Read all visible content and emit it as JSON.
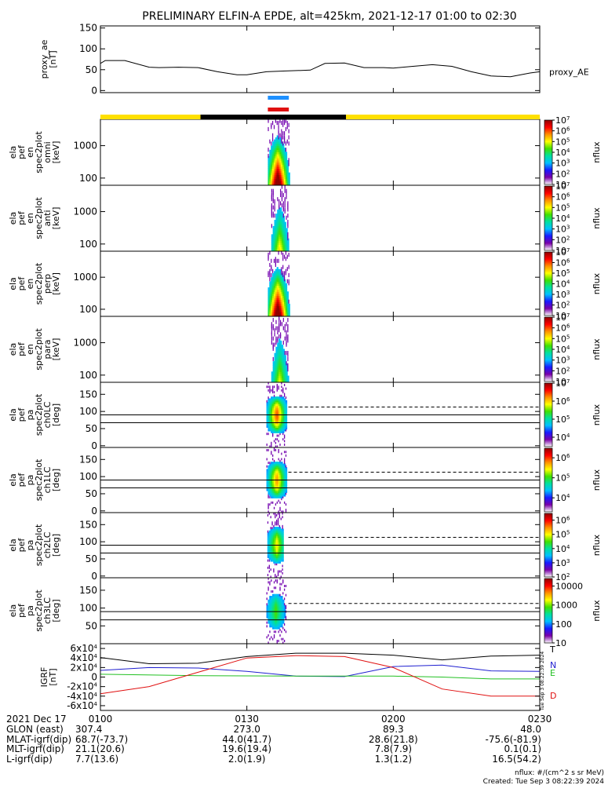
{
  "title": "PRELIMINARY ELFIN-A EPDE, alt=425km, 2021-12-17 01:00 to 02:30",
  "colors": {
    "ae_line": "#000000",
    "bar_blue": "#1e90ff",
    "bar_red": "#e01010",
    "bar_yellow": "#ffe000",
    "bar_black": "#000000",
    "igrf_T": "#000000",
    "igrf_N": "#1f1fd0",
    "igrf_E": "#22c022",
    "igrf_D": "#e01010"
  },
  "colorbar_gradient": [
    "#ffffff",
    "#7a00a8",
    "#1a1aff",
    "#00c0ff",
    "#00e0a0",
    "#40e000",
    "#ffff00",
    "#ff9000",
    "#ff0000",
    "#900000"
  ],
  "time_axis": {
    "range_min": [
      0,
      90
    ],
    "ticks": [
      {
        "t": 0,
        "label": "0100"
      },
      {
        "t": 30,
        "label": "0130"
      },
      {
        "t": 60,
        "label": "0200"
      },
      {
        "t": 90,
        "label": "0230"
      }
    ],
    "date_label": "2021 Dec 17"
  },
  "ephemeris": [
    {
      "label": "GLON (east)",
      "values": [
        "307.4",
        "273.0",
        "89.3",
        "48.0"
      ]
    },
    {
      "label": "MLAT-igrf(dip)",
      "values": [
        "68.7(-73.7)",
        "44.0(41.7)",
        "28.6(21.8)",
        "-75.6(-81.9)"
      ]
    },
    {
      "label": "MLT-igrf(dip)",
      "values": [
        "21.1(20.6)",
        "19.6(19.4)",
        "7.8(7.9)",
        "0.1(0.1)"
      ]
    },
    {
      "label": "L-igrf(dip)",
      "values": [
        "7.7(13.6)",
        "2.0(1.9)",
        "1.3(1.2)",
        "16.5(54.2)"
      ]
    }
  ],
  "footer": {
    "units": "nflux: #/(cm^2 s sr MeV)",
    "created": "Created: Tue Sep  3 08:22:39 2024",
    "side_stamp": "Tue Sep  3 08:22:39 2024"
  },
  "chart_data": [
    {
      "type": "line",
      "panel": "proxy_ae",
      "ylabel_lines": [
        "proxy_ae",
        "[nT]"
      ],
      "ylim": [
        -5,
        155
      ],
      "yticks": [
        0,
        50,
        100,
        150
      ],
      "series": [
        {
          "name": "proxy_AE",
          "x": [
            0,
            1,
            5,
            10,
            12,
            16,
            20,
            24,
            28,
            30,
            34,
            38,
            43,
            46,
            50,
            54,
            58,
            60,
            64,
            68,
            72,
            76,
            80,
            84,
            88,
            90
          ],
          "values": [
            65,
            72,
            72,
            56,
            55,
            56,
            55,
            45,
            38,
            38,
            45,
            47,
            49,
            65,
            66,
            55,
            55,
            54,
            58,
            62,
            58,
            45,
            35,
            33,
            42,
            45
          ]
        }
      ]
    },
    {
      "type": "heatmap",
      "panel": "en-omni",
      "ylabel_lines": [
        "ela",
        "pef",
        "en",
        "spec2plot",
        "omni",
        "[keV]"
      ],
      "y_scale": "log",
      "ylim": [
        60,
        6500
      ],
      "yticks": [
        100,
        1000
      ],
      "ytick_labels": [
        "100",
        "1000"
      ],
      "colorbar": {
        "label": "nflux",
        "scale": "log",
        "range": [
          10,
          10000000
        ],
        "tick_labels": [
          "10",
          "10^2",
          "10^3",
          "10^4",
          "10^5",
          "10^6",
          "10^7"
        ]
      },
      "active_time_min": [
        34.3,
        38.6
      ],
      "peak_time_min": 36.2,
      "intensity": 1.0
    },
    {
      "type": "heatmap",
      "panel": "en-anti",
      "ylabel_lines": [
        "ela",
        "pef",
        "en",
        "spec2plot",
        "anti",
        "[keV]"
      ],
      "y_scale": "log",
      "ylim": [
        60,
        6500
      ],
      "yticks": [
        100,
        1000
      ],
      "ytick_labels": [
        "100",
        "1000"
      ],
      "colorbar": {
        "label": "nflux",
        "scale": "log",
        "range": [
          10,
          10000000
        ],
        "tick_labels": [
          "10",
          "10^2",
          "10^3",
          "10^4",
          "10^5",
          "10^6",
          "10^7"
        ]
      },
      "active_time_min": [
        35.0,
        38.4
      ],
      "peak_time_min": 36.6,
      "intensity": 0.5
    },
    {
      "type": "heatmap",
      "panel": "en-perp",
      "ylabel_lines": [
        "ela",
        "pef",
        "en",
        "spec2plot",
        "perp",
        "[keV]"
      ],
      "y_scale": "log",
      "ylim": [
        60,
        6500
      ],
      "yticks": [
        100,
        1000
      ],
      "ytick_labels": [
        "100",
        "1000"
      ],
      "colorbar": {
        "label": "nflux",
        "scale": "log",
        "range": [
          10,
          10000000
        ],
        "tick_labels": [
          "10",
          "10^2",
          "10^3",
          "10^4",
          "10^5",
          "10^6",
          "10^7"
        ]
      },
      "active_time_min": [
        34.3,
        38.6
      ],
      "peak_time_min": 36.2,
      "intensity": 1.0
    },
    {
      "type": "heatmap",
      "panel": "en-para",
      "ylabel_lines": [
        "ela",
        "pef",
        "en",
        "spec2plot",
        "para",
        "[keV]"
      ],
      "y_scale": "log",
      "ylim": [
        60,
        6500
      ],
      "yticks": [
        100,
        1000
      ],
      "ytick_labels": [
        "100",
        "1000"
      ],
      "colorbar": {
        "label": "nflux",
        "scale": "log",
        "range": [
          10,
          10000000
        ],
        "tick_labels": [
          "10",
          "10^2",
          "10^3",
          "10^4",
          "10^5",
          "10^6",
          "10^7"
        ]
      },
      "active_time_min": [
        35.0,
        38.4
      ],
      "peak_time_min": 36.6,
      "intensity": 0.45
    },
    {
      "type": "heatmap",
      "panel": "pa-ch0LC",
      "ylabel_lines": [
        "ela",
        "pef",
        "pa",
        "spec2plot",
        "ch0LC",
        "[deg]"
      ],
      "ylim": [
        -5,
        185
      ],
      "yticks": [
        0,
        50,
        100,
        150
      ],
      "colorbar": {
        "label": "nflux",
        "scale": "log",
        "range": [
          3000,
          10000000
        ],
        "tick_labels": [
          "10^4",
          "10^5",
          "10^6",
          "10^7"
        ]
      },
      "active_time_min": [
        34.0,
        38.0
      ],
      "peak_time_min": 36.0,
      "hlines_solid": [
        90,
        67
      ],
      "hlines_dashed": [
        113
      ],
      "intensity": 1.0
    },
    {
      "type": "heatmap",
      "panel": "pa-ch1LC",
      "ylabel_lines": [
        "ela",
        "pef",
        "pa",
        "spec2plot",
        "ch1LC",
        "[deg]"
      ],
      "ylim": [
        -5,
        185
      ],
      "yticks": [
        0,
        50,
        100,
        150
      ],
      "colorbar": {
        "label": "nflux",
        "scale": "log",
        "range": [
          2000,
          3000000
        ],
        "tick_labels": [
          "10^4",
          "10^5",
          "10^6"
        ]
      },
      "active_time_min": [
        34.0,
        38.0
      ],
      "peak_time_min": 36.0,
      "hlines_solid": [
        90,
        67
      ],
      "hlines_dashed": [
        113
      ],
      "intensity": 0.9
    },
    {
      "type": "heatmap",
      "panel": "pa-ch2LC",
      "ylabel_lines": [
        "ela",
        "pef",
        "pa",
        "spec2plot",
        "ch2LC",
        "[deg]"
      ],
      "ylim": [
        -5,
        185
      ],
      "yticks": [
        0,
        50,
        100,
        150
      ],
      "colorbar": {
        "label": "nflux",
        "scale": "log",
        "range": [
          100,
          3000000
        ],
        "tick_labels": [
          "10^2",
          "10^3",
          "10^4",
          "10^5",
          "10^6"
        ]
      },
      "active_time_min": [
        34.2,
        37.4
      ],
      "peak_time_min": 36.0,
      "hlines_solid": [
        90,
        67
      ],
      "hlines_dashed": [
        113
      ],
      "intensity": 0.75
    },
    {
      "type": "heatmap",
      "panel": "pa-ch3LC",
      "ylabel_lines": [
        "ela",
        "pef",
        "pa",
        "spec2plot",
        "ch3LC",
        "[deg]"
      ],
      "ylim": [
        0,
        185
      ],
      "yticks": [
        50,
        100,
        150
      ],
      "colorbar": {
        "label": "nflux",
        "scale": "log",
        "range": [
          10,
          25000
        ],
        "tick_labels": [
          "10",
          "100",
          "1000",
          "10000"
        ]
      },
      "active_time_min": [
        34.0,
        38.6
      ],
      "peak_time_min": 35.8,
      "hlines_solid": [
        90,
        67
      ],
      "hlines_dashed": [
        113
      ],
      "intensity": 0.55
    },
    {
      "type": "line",
      "panel": "igrf",
      "ylabel_lines": [
        "IGRF",
        "[nT]"
      ],
      "ylim": [
        -70000,
        70000
      ],
      "yticks": [
        -60000,
        -40000,
        -20000,
        0,
        20000,
        40000,
        60000
      ],
      "ytick_labels": [
        "-6x10^4",
        "-4x10^4",
        "-2x10^4",
        "0",
        "2x10^4",
        "4x10^4",
        "6x10^4"
      ],
      "series": [
        {
          "name": "T",
          "x": [
            0,
            10,
            20,
            30,
            40,
            50,
            60,
            70,
            80,
            90
          ],
          "values": [
            41000,
            28000,
            29000,
            43000,
            50000,
            50000,
            46000,
            36000,
            44000,
            46000
          ]
        },
        {
          "name": "N",
          "x": [
            0,
            10,
            20,
            30,
            40,
            50,
            60,
            70,
            80,
            90
          ],
          "values": [
            14000,
            20000,
            19000,
            12000,
            2000,
            1000,
            22000,
            25000,
            13000,
            12000
          ]
        },
        {
          "name": "E",
          "x": [
            0,
            20,
            40,
            60,
            70,
            80,
            90
          ],
          "values": [
            6000,
            3000,
            2000,
            2000,
            0,
            -4000,
            -4000
          ]
        },
        {
          "name": "D",
          "x": [
            0,
            10,
            20,
            30,
            40,
            50,
            60,
            70,
            80,
            90
          ],
          "values": [
            -35000,
            -20000,
            10000,
            40000,
            45000,
            43000,
            20000,
            -25000,
            -40000,
            -40000
          ]
        }
      ]
    }
  ]
}
